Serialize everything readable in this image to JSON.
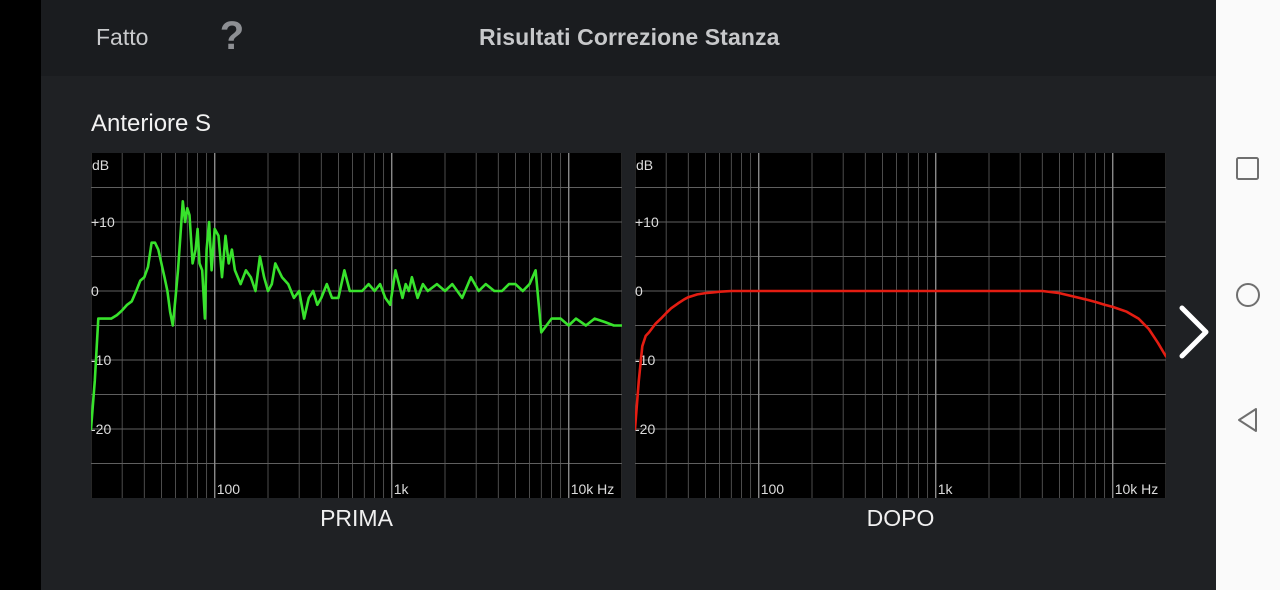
{
  "header": {
    "done_label": "Fatto",
    "help_label": "?",
    "title": "Risultati Correzione Stanza"
  },
  "channel_name": "Anteriore S",
  "charts": {
    "before_label": "PRIMA",
    "after_label": "DOPO",
    "db_unit_label": "dB",
    "y_ticks": [
      "+10",
      "0",
      "-10",
      "-20"
    ],
    "x_ticks": [
      "100",
      "1k",
      "10k Hz"
    ]
  },
  "colors": {
    "before_line": "#38e22c",
    "after_line": "#e41d12",
    "grid": "#5f5f5f",
    "background": "#1f2124"
  },
  "chart_data": [
    {
      "type": "line",
      "title": "PRIMA",
      "xlabel": "Hz",
      "ylabel": "dB",
      "x_scale": "log",
      "xlim": [
        20,
        20000
      ],
      "ylim": [
        -30,
        20
      ],
      "x_ticks": [
        "100",
        "1k",
        "10k Hz"
      ],
      "y_ticks": [
        "+10",
        "0",
        "-10",
        "-20"
      ],
      "series": [
        {
          "color": "#38e22c",
          "x": [
            20,
            21,
            22,
            24,
            26,
            28,
            30,
            32,
            34,
            36,
            38,
            40,
            42,
            44,
            46,
            48,
            50,
            52,
            54,
            56,
            58,
            60,
            62,
            64,
            66,
            68,
            70,
            72,
            75,
            78,
            80,
            82,
            85,
            88,
            90,
            93,
            96,
            100,
            105,
            110,
            115,
            120,
            125,
            130,
            140,
            150,
            160,
            170,
            180,
            190,
            200,
            210,
            220,
            240,
            260,
            280,
            300,
            320,
            340,
            360,
            380,
            400,
            430,
            460,
            500,
            540,
            580,
            620,
            680,
            740,
            800,
            860,
            920,
            980,
            1050,
            1100,
            1150,
            1200,
            1250,
            1300,
            1400,
            1500,
            1600,
            1800,
            2000,
            2200,
            2500,
            2800,
            3100,
            3400,
            3800,
            4200,
            4600,
            5000,
            5500,
            6000,
            6500,
            7000,
            8000,
            9000,
            10000,
            11000,
            12500,
            14000,
            16000,
            18000,
            20000
          ],
          "y": [
            -20,
            -13,
            -4,
            -4,
            -4,
            -3.5,
            -2.8,
            -2,
            -1.5,
            0,
            1.5,
            2,
            3.5,
            7,
            7,
            6,
            4,
            2,
            0,
            -3,
            -5,
            -1,
            3,
            8,
            13,
            10,
            12,
            11,
            4,
            6,
            9,
            4,
            3,
            -4,
            6,
            10,
            3,
            9,
            8,
            2,
            8,
            4,
            6,
            3,
            1,
            3,
            2,
            0,
            5,
            2,
            0,
            1,
            4,
            2,
            1,
            -1,
            0,
            -4,
            -1,
            0,
            -2,
            -1,
            1,
            -1,
            -1,
            3,
            0,
            0,
            0,
            1,
            0,
            1,
            -1,
            -2,
            3,
            1,
            -1,
            1,
            0,
            2,
            -1,
            1,
            0,
            1,
            0,
            1,
            -1,
            2,
            0,
            1,
            0,
            0,
            1,
            1,
            0,
            1,
            3,
            -6,
            -4,
            -4,
            -5,
            -4,
            -5,
            -4,
            -4.5,
            -5,
            -5
          ]
        }
      ]
    },
    {
      "type": "line",
      "title": "DOPO",
      "xlabel": "Hz",
      "ylabel": "dB",
      "x_scale": "log",
      "xlim": [
        20,
        20000
      ],
      "ylim": [
        -30,
        20
      ],
      "x_ticks": [
        "100",
        "1k",
        "10k Hz"
      ],
      "y_ticks": [
        "+10",
        "0",
        "-10",
        "-20"
      ],
      "series": [
        {
          "color": "#e41d12",
          "x": [
            20,
            21,
            22,
            23,
            24,
            26,
            28,
            30,
            32,
            35,
            38,
            40,
            45,
            50,
            55,
            60,
            70,
            80,
            100,
            150,
            200,
            300,
            500,
            700,
            1000,
            1500,
            2000,
            3000,
            4000,
            5000,
            6000,
            7000,
            8000,
            9000,
            10000,
            12000,
            14000,
            16000,
            18000,
            20000
          ],
          "y": [
            -20,
            -13,
            -8,
            -6.5,
            -6,
            -4.8,
            -4,
            -3.2,
            -2.5,
            -1.8,
            -1.2,
            -0.9,
            -0.5,
            -0.3,
            -0.2,
            -0.1,
            0,
            0,
            0,
            0,
            0,
            0,
            0,
            0,
            0,
            0,
            0,
            0,
            0,
            -0.3,
            -0.8,
            -1.2,
            -1.6,
            -2,
            -2.3,
            -3,
            -4,
            -5.5,
            -7.5,
            -9.5
          ]
        }
      ]
    }
  ]
}
